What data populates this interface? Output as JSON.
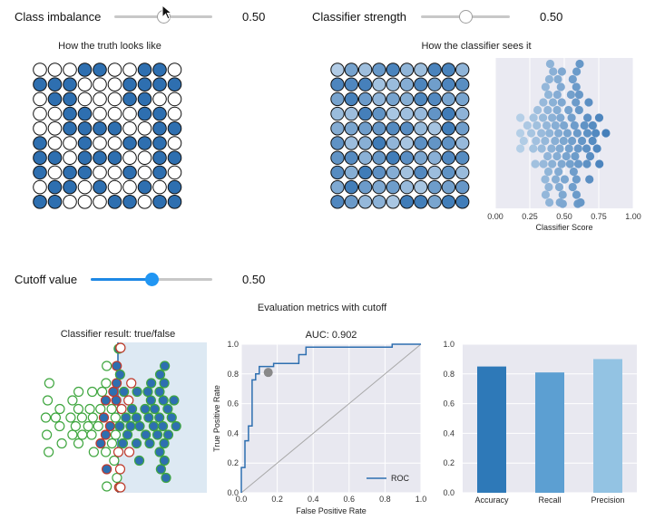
{
  "controls": {
    "class_imbalance": {
      "label": "Class imbalance",
      "value": "0.50",
      "fraction": 0.5
    },
    "classifier_strength": {
      "label": "Classifier strength",
      "value": "0.50",
      "fraction": 0.5
    },
    "cutoff": {
      "label": "Cutoff value",
      "value": "0.50",
      "fraction": 0.5
    }
  },
  "titles": {
    "truth": "How the truth looks like",
    "classifier_view": "How the classifier sees it",
    "evaluation": "Evaluation metrics with cutoff",
    "result": "Classifier result: true/false"
  },
  "colors": {
    "positive": "#2e6fb0",
    "negative": "#ffffff",
    "accent": "#2196f3",
    "plot_bg": "#e8e8f0",
    "correct_edge": "#3fa63f",
    "wrong_edge": "#c0392b",
    "shade": "#dde9f3"
  },
  "truth_grid": [
    [
      0,
      0,
      0,
      1,
      1,
      0,
      0,
      1,
      1,
      0
    ],
    [
      1,
      1,
      1,
      0,
      0,
      0,
      1,
      1,
      1,
      1
    ],
    [
      0,
      1,
      1,
      0,
      0,
      0,
      1,
      1,
      0,
      0
    ],
    [
      0,
      0,
      1,
      1,
      0,
      0,
      0,
      1,
      1,
      0
    ],
    [
      0,
      0,
      1,
      1,
      1,
      1,
      0,
      0,
      1,
      1
    ],
    [
      1,
      0,
      0,
      1,
      0,
      0,
      1,
      1,
      1,
      0
    ],
    [
      1,
      1,
      0,
      1,
      1,
      1,
      0,
      0,
      1,
      1
    ],
    [
      1,
      0,
      1,
      1,
      0,
      0,
      1,
      0,
      1,
      0
    ],
    [
      0,
      1,
      1,
      0,
      1,
      0,
      0,
      1,
      0,
      1
    ],
    [
      1,
      1,
      0,
      0,
      0,
      1,
      1,
      0,
      1,
      1
    ]
  ],
  "chart_data": [
    {
      "type": "scatter",
      "id": "score_distribution",
      "xlabel": "Classifier Score",
      "ylabel": "",
      "xlim": [
        0.0,
        1.0
      ],
      "xticks": [
        "0.00",
        "0.25",
        "0.50",
        "0.75",
        "1.00"
      ],
      "description_series": "beeswarm of classifier scores, colored by score"
    },
    {
      "type": "line",
      "id": "roc",
      "title": "AUC: 0.902",
      "xlabel": "False Positive Rate",
      "ylabel": "True Positive Rate",
      "xlim": [
        0,
        1
      ],
      "ylim": [
        0,
        1
      ],
      "xticks": [
        "0.0",
        "0.2",
        "0.4",
        "0.6",
        "0.8",
        "1.0"
      ],
      "yticks": [
        "0.0",
        "0.2",
        "0.4",
        "0.6",
        "0.8",
        "1.0"
      ],
      "legend": "ROC",
      "series": [
        {
          "name": "ROC",
          "x": [
            0,
            0,
            0.02,
            0.02,
            0.04,
            0.04,
            0.06,
            0.06,
            0.08,
            0.08,
            0.1,
            0.1,
            0.18,
            0.18,
            0.32,
            0.32,
            0.36,
            0.36,
            0.84,
            0.84,
            1.0
          ],
          "y": [
            0,
            0.17,
            0.17,
            0.35,
            0.35,
            0.45,
            0.45,
            0.76,
            0.76,
            0.8,
            0.8,
            0.85,
            0.85,
            0.87,
            0.87,
            0.93,
            0.93,
            0.98,
            0.98,
            1.0,
            1.0
          ]
        }
      ],
      "diagonal": true,
      "cutoff_point": {
        "x": 0.15,
        "y": 0.81
      }
    },
    {
      "type": "bar",
      "id": "metrics",
      "categories": [
        "Accuracy",
        "Recall",
        "Precision"
      ],
      "values": [
        0.85,
        0.81,
        0.9
      ],
      "ylim": [
        0,
        1
      ],
      "yticks": [
        "0.0",
        "0.2",
        "0.4",
        "0.6",
        "0.8",
        "1.0"
      ],
      "bar_colors": [
        "#2e79b8",
        "#5c9fd2",
        "#93c3e3"
      ]
    }
  ]
}
